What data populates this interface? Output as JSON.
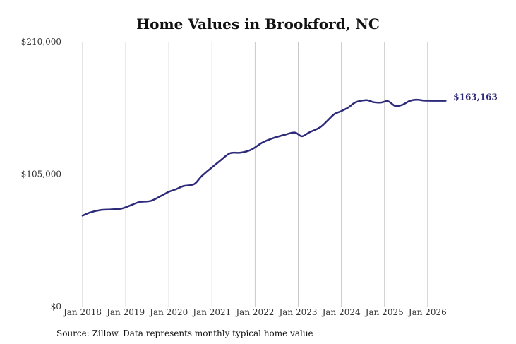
{
  "chart_data": {
    "type": "line",
    "title": "Home Values in Brookford, NC",
    "xlabel": "",
    "ylabel": "",
    "ylim": [
      0,
      210000
    ],
    "xlim": [
      "2018-01",
      "2026-07"
    ],
    "y_ticks": [
      "$0",
      "$105,000",
      "$210,000"
    ],
    "y_tick_values": [
      0,
      105000,
      210000
    ],
    "x_ticks": [
      "Jan 2018",
      "Jan 2019",
      "Jan 2020",
      "Jan 2021",
      "Jan 2022",
      "Jan 2023",
      "Jan 2024",
      "Jan 2025",
      "Jan 2026"
    ],
    "x_tick_values": [
      "2018-01",
      "2019-01",
      "2020-01",
      "2021-01",
      "2022-01",
      "2023-01",
      "2024-01",
      "2025-01",
      "2026-01"
    ],
    "grid": "vertical",
    "line_color": "#2e2a7a",
    "series": [
      {
        "name": "",
        "x": [
          "2018-01",
          "2018-03",
          "2018-06",
          "2018-09",
          "2018-12",
          "2019-03",
          "2019-05",
          "2019-08",
          "2019-11",
          "2020-01",
          "2020-03",
          "2020-05",
          "2020-08",
          "2020-10",
          "2020-12",
          "2021-03",
          "2021-06",
          "2021-09",
          "2021-12",
          "2022-03",
          "2022-06",
          "2022-09",
          "2022-12",
          "2023-02",
          "2023-04",
          "2023-07",
          "2023-09",
          "2023-11",
          "2024-01",
          "2024-03",
          "2024-05",
          "2024-08",
          "2024-10",
          "2024-12",
          "2025-02",
          "2025-04",
          "2025-06",
          "2025-08",
          "2025-10",
          "2025-12",
          "2026-02",
          "2026-04",
          "2026-06"
        ],
        "y": [
          72000,
          74500,
          76500,
          77000,
          77800,
          81000,
          83000,
          83800,
          88000,
          91000,
          93000,
          95500,
          97000,
          103000,
          108000,
          115000,
          121500,
          122000,
          124500,
          130000,
          133500,
          136000,
          138000,
          135000,
          138000,
          142000,
          147000,
          152500,
          155000,
          158000,
          162000,
          163700,
          162000,
          161800,
          162800,
          159000,
          160000,
          163000,
          164000,
          163300,
          163200,
          163163,
          163163
        ]
      }
    ],
    "end_label": "$163,163"
  },
  "source_text": "Source: Zillow. Data represents monthly typical home value"
}
